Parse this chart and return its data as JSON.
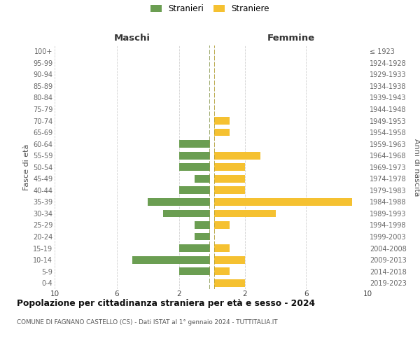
{
  "age_groups": [
    "100+",
    "95-99",
    "90-94",
    "85-89",
    "80-84",
    "75-79",
    "70-74",
    "65-69",
    "60-64",
    "55-59",
    "50-54",
    "45-49",
    "40-44",
    "35-39",
    "30-34",
    "25-29",
    "20-24",
    "15-19",
    "10-14",
    "5-9",
    "0-4"
  ],
  "birth_years": [
    "≤ 1923",
    "1924-1928",
    "1929-1933",
    "1934-1938",
    "1939-1943",
    "1944-1948",
    "1949-1953",
    "1954-1958",
    "1959-1963",
    "1964-1968",
    "1969-1973",
    "1974-1978",
    "1979-1983",
    "1984-1988",
    "1989-1993",
    "1994-1998",
    "1999-2003",
    "2004-2008",
    "2009-2013",
    "2014-2018",
    "2019-2023"
  ],
  "males": [
    0,
    0,
    0,
    0,
    0,
    0,
    0,
    0,
    2,
    2,
    2,
    1,
    2,
    4,
    3,
    1,
    1,
    2,
    5,
    2,
    0
  ],
  "females": [
    0,
    0,
    0,
    0,
    0,
    0,
    1,
    1,
    0,
    3,
    2,
    2,
    2,
    9,
    4,
    1,
    0,
    1,
    2,
    1,
    2
  ],
  "male_color": "#6b9e52",
  "female_color": "#f5c131",
  "bg_color": "#ffffff",
  "grid_color": "#cccccc",
  "title": "Popolazione per cittadinanza straniera per età e sesso - 2024",
  "subtitle": "COMUNE DI FAGNANO CASTELLO (CS) - Dati ISTAT al 1° gennaio 2024 - TUTTITALIA.IT",
  "label_maschi": "Maschi",
  "label_femmine": "Femmine",
  "ylabel_left": "Fasce di età",
  "ylabel_right": "Anni di nascita",
  "legend_stranieri": "Stranieri",
  "legend_straniere": "Straniere",
  "xlim": 10
}
